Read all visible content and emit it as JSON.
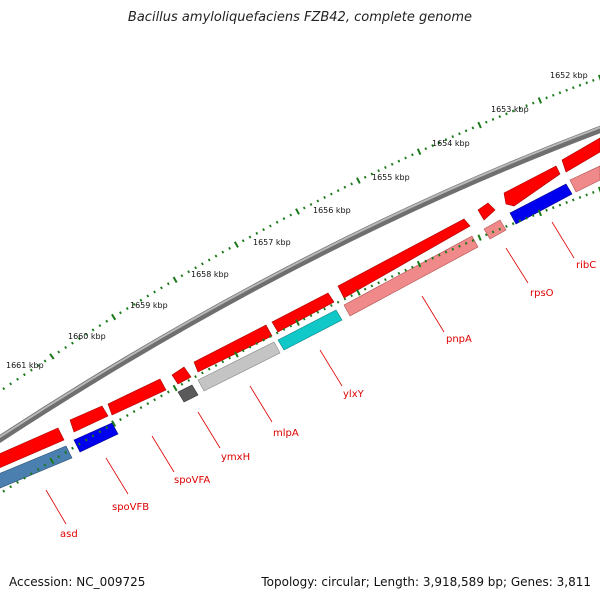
{
  "title": "Bacillus amyloliquefaciens FZB42, complete genome",
  "footer": {
    "accession_label": "Accession:",
    "accession": "NC_009725",
    "summary": "Topology: circular; Length: 3,918,589 bp; Genes: 3,811"
  },
  "colors": {
    "backbone": "#7a7a7a",
    "tick": "#1a7a1a",
    "label": "#e00000",
    "gene_red": "#ff0000",
    "gene_pink": "#f08a8a",
    "gene_blue": "#0000ee",
    "gene_steel": "#4a7fb0",
    "gene_cyan": "#10c8c8",
    "gene_lightgray": "#c4c4c4",
    "gene_darkgray": "#5a5a5a"
  },
  "kbp_labels": [
    "1652 kbp",
    "1653 kbp",
    "1654 kbp",
    "1655 kbp",
    "1656 kbp",
    "1657 kbp",
    "1658 kbp",
    "1659 kbp",
    "1660 kbp",
    "1661 kbp"
  ],
  "gene_labels": [
    "ribC",
    "rpsO",
    "pnpA",
    "ylxY",
    "mlpA",
    "ymxH",
    "spoVFA",
    "spoVFB",
    "asd"
  ]
}
